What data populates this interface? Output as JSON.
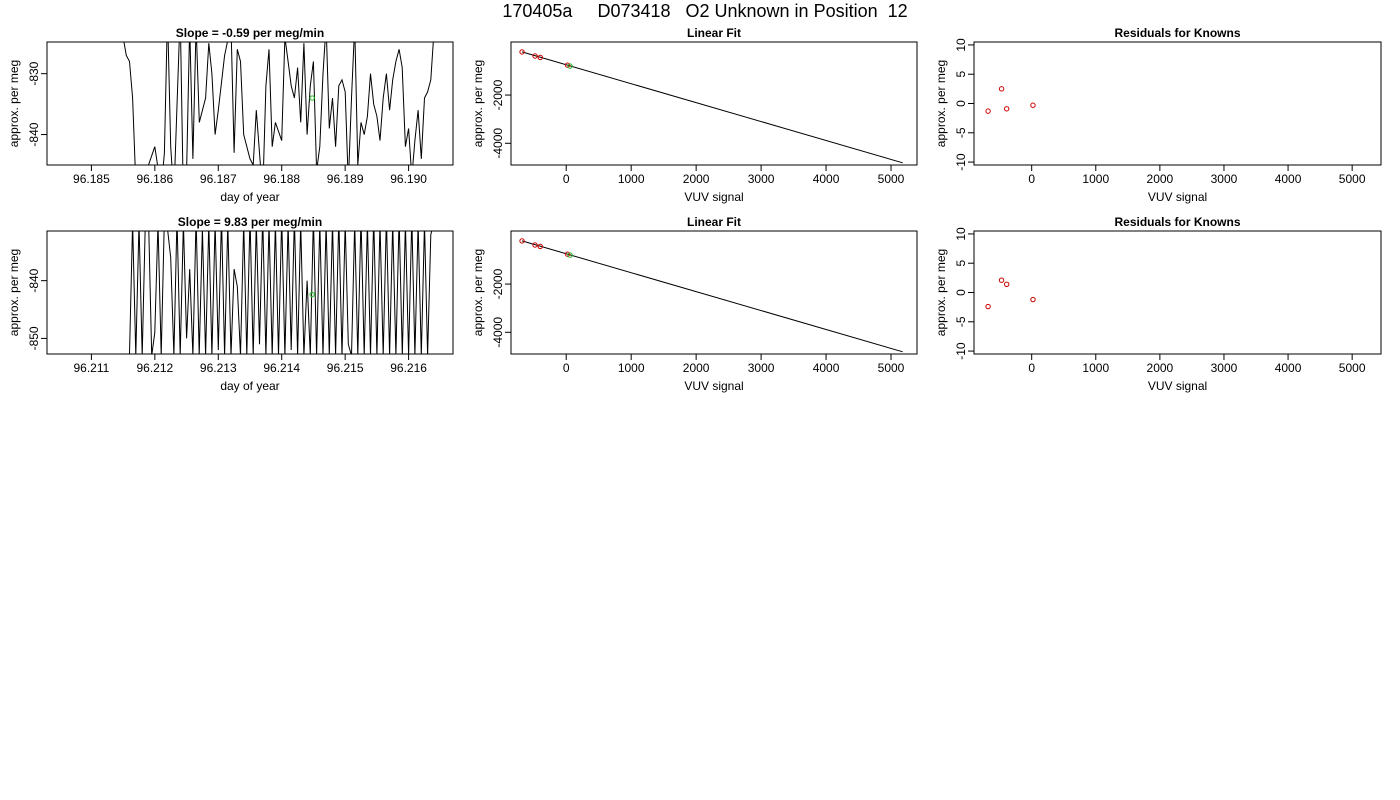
{
  "page_title": "170405a     D073418   O2 Unknown in Position  12",
  "colors": {
    "line": "#000000",
    "known_point": "#cc0000",
    "unknown_point": "#22bb22",
    "frame": "#000000"
  },
  "chart_data": [
    {
      "type": "line",
      "title": "Slope =  -0.59  per meg/min",
      "xlabel": "day of year",
      "ylabel": "approx. per meg",
      "xlim": [
        96.1843,
        96.1907
      ],
      "ylim": [
        -845.0,
        -824.8
      ],
      "xticks": [
        96.185,
        96.186,
        96.187,
        96.188,
        96.189,
        96.19
      ],
      "xtick_labels": [
        "96.185",
        "96.186",
        "96.187",
        "96.188",
        "96.189",
        "96.190"
      ],
      "yticks": [
        -840,
        -830
      ],
      "ytick_labels": [
        "-840",
        "-830"
      ],
      "series": [
        {
          "x": [
            96.1855,
            96.18555,
            96.1856,
            96.18565,
            96.1857,
            96.1859,
            96.186,
            96.1861,
            96.18615,
            96.1862,
            96.18625,
            96.1863,
            96.1864,
            96.18645,
            96.1865,
            96.18655,
            96.1866,
            96.18665,
            96.1867,
            96.1868,
            96.18685,
            96.1869,
            96.18695,
            96.187,
            96.1871,
            96.1872,
            96.18725,
            96.1873,
            96.18735,
            96.1874,
            96.1875,
            96.18755,
            96.1876,
            96.1877,
            96.18775,
            96.1878,
            96.18785,
            96.1879,
            96.188,
            96.18805,
            96.1881,
            96.18815,
            96.1882,
            96.18825,
            96.1883,
            96.18835,
            96.1884,
            96.18845,
            96.1885,
            96.18855,
            96.1886,
            96.18865,
            96.1887,
            96.18875,
            96.1888,
            96.18885,
            96.1889,
            96.18895,
            96.189,
            96.18905,
            96.1891,
            96.18915,
            96.1892,
            96.18925,
            96.1893,
            96.18935,
            96.1894,
            96.18945,
            96.1895,
            96.18955,
            96.1896,
            96.18965,
            96.1897,
            96.18975,
            96.1898,
            96.18985,
            96.1899,
            96.18995,
            96.19,
            96.19005,
            96.1901,
            96.19015,
            96.1902,
            96.19025,
            96.1903,
            96.19035,
            96.1904
          ],
          "y": [
            -824,
            -827,
            -828,
            -834,
            -848,
            -845,
            -842,
            -849,
            -843,
            -820,
            -842,
            -850,
            -820,
            -851,
            -846,
            -822,
            -844,
            -822,
            -838,
            -834,
            -825,
            -830,
            -840,
            -836,
            -827,
            -822,
            -843,
            -826,
            -828,
            -840,
            -844,
            -845,
            -836,
            -850,
            -832,
            -826,
            -842,
            -838,
            -841,
            -824,
            -828,
            -832,
            -834,
            -829,
            -838,
            -825,
            -840,
            -832,
            -828,
            -846,
            -842,
            -830,
            -822,
            -839,
            -834,
            -842,
            -832,
            -831,
            -833,
            -848,
            -834,
            -822,
            -845,
            -838,
            -840,
            -837,
            -830,
            -835,
            -837,
            -841,
            -834,
            -830,
            -836,
            -831,
            -828,
            -826,
            -829,
            -842,
            -839,
            -847,
            -841,
            -836,
            -844,
            -834,
            -833,
            -831,
            -823
          ]
        }
      ],
      "points": [
        {
          "x": 96.18848,
          "y": -834.0,
          "role": "unknown"
        }
      ]
    },
    {
      "type": "scatter",
      "title": "Linear Fit",
      "xlabel": "VUV signal",
      "ylabel": "approx. per meg",
      "xlim": [
        -850,
        5400
      ],
      "ylim": [
        -4900,
        200
      ],
      "xticks": [
        0,
        1000,
        2000,
        3000,
        4000,
        5000
      ],
      "xtick_labels": [
        "0",
        "1000",
        "2000",
        "3000",
        "4000",
        "5000"
      ],
      "yticks": [
        -4000,
        -2000
      ],
      "ytick_labels": [
        "-4000",
        "-2000"
      ],
      "fit_line": {
        "x": [
          -680,
          5180
        ],
        "y": [
          -210,
          -4810
        ]
      },
      "points": [
        {
          "x": -680,
          "y": -210,
          "role": "known"
        },
        {
          "x": -480,
          "y": -380,
          "role": "known"
        },
        {
          "x": -400,
          "y": -440,
          "role": "known"
        },
        {
          "x": 20,
          "y": -760,
          "role": "known"
        },
        {
          "x": 60,
          "y": -800,
          "role": "unknown"
        }
      ]
    },
    {
      "type": "scatter",
      "title": "Residuals for Knowns",
      "xlabel": "VUV signal",
      "ylabel": "approx. per meg",
      "xlim": [
        -900,
        5450
      ],
      "ylim": [
        -10.5,
        10.5
      ],
      "xticks": [
        0,
        1000,
        2000,
        3000,
        4000,
        5000
      ],
      "xtick_labels": [
        "0",
        "1000",
        "2000",
        "3000",
        "4000",
        "5000"
      ],
      "yticks": [
        -10,
        -5,
        0,
        5,
        10
      ],
      "ytick_labels": [
        "-10",
        "-5",
        "0",
        "5",
        "10"
      ],
      "points": [
        {
          "x": -680,
          "y": -1.3,
          "role": "known"
        },
        {
          "x": -470,
          "y": 2.5,
          "role": "known"
        },
        {
          "x": -390,
          "y": -0.9,
          "role": "known"
        },
        {
          "x": 20,
          "y": -0.3,
          "role": "known"
        }
      ]
    },
    {
      "type": "line",
      "title": "Slope =  9.83  per meg/min",
      "xlabel": "day of year",
      "ylabel": "approx. per meg",
      "xlim": [
        96.2103,
        96.2167
      ],
      "ylim": [
        -852.7,
        -831.4
      ],
      "xticks": [
        96.211,
        96.212,
        96.213,
        96.214,
        96.215,
        96.216
      ],
      "xtick_labels": [
        "96.211",
        "96.212",
        "96.213",
        "96.214",
        "96.215",
        "96.216"
      ],
      "yticks": [
        -850,
        -840
      ],
      "ytick_labels": [
        "-850",
        "-840"
      ],
      "series": [
        {
          "x": [
            96.2103,
            96.2116,
            96.21165,
            96.2117,
            96.21175,
            96.2118,
            96.21185,
            96.2119,
            96.21195,
            96.212,
            96.21205,
            96.2121,
            96.21215,
            96.2122,
            96.21225,
            96.2123,
            96.21235,
            96.2124,
            96.21245,
            96.2125,
            96.21255,
            96.2126,
            96.21265,
            96.2127,
            96.21275,
            96.2128,
            96.21285,
            96.2129,
            96.21295,
            96.213,
            96.21305,
            96.2131,
            96.21315,
            96.2132,
            96.21325,
            96.2133,
            96.21335,
            96.2134,
            96.21345,
            96.2135,
            96.21355,
            96.2136,
            96.21365,
            96.2137,
            96.21375,
            96.2138,
            96.21385,
            96.2139,
            96.21395,
            96.214,
            96.21405,
            96.2141,
            96.21415,
            96.2142,
            96.21425,
            96.2143,
            96.21435,
            96.2144,
            96.21445,
            96.2145,
            96.21455,
            96.2146,
            96.21465,
            96.2147,
            96.21475,
            96.2148,
            96.21485,
            96.2149,
            96.21495,
            96.215,
            96.21505,
            96.2151,
            96.21515,
            96.2152,
            96.21525,
            96.2153,
            96.21535,
            96.2154,
            96.21545,
            96.2155,
            96.21555,
            96.2156,
            96.21565,
            96.2157,
            96.21575,
            96.2158,
            96.21585,
            96.2159,
            96.21595,
            96.216,
            96.21605,
            96.2161,
            96.21615,
            96.2162,
            96.21625,
            96.2163,
            96.21635,
            96.2164
          ],
          "y": [
            -852.7,
            -852.7,
            -830,
            -853,
            -830,
            -853,
            -830,
            -829,
            -853,
            -849,
            -830,
            -853,
            -829,
            -831,
            -836,
            -853,
            -829,
            -853,
            -830,
            -850,
            -838,
            -853,
            -829,
            -853,
            -831,
            -853,
            -830,
            -853,
            -830,
            -852,
            -829,
            -853,
            -830,
            -853,
            -838,
            -841,
            -853,
            -830,
            -853,
            -829,
            -853,
            -830,
            -851,
            -829,
            -853,
            -830,
            -853,
            -830,
            -853,
            -829,
            -853,
            -830,
            -852,
            -829,
            -853,
            -830,
            -853,
            -840,
            -853,
            -829,
            -853,
            -830,
            -853,
            -830,
            -853,
            -830,
            -853,
            -829,
            -853,
            -830,
            -851,
            -853,
            -830,
            -853,
            -829,
            -853,
            -830,
            -853,
            -829,
            -853,
            -830,
            -853,
            -829,
            -853,
            -830,
            -853,
            -829,
            -853,
            -830,
            -853,
            -829,
            -853,
            -830,
            -853,
            -830,
            -853,
            -832,
            -830
          ]
        }
      ],
      "points": [
        {
          "x": 96.21448,
          "y": -842.4,
          "role": "unknown"
        }
      ]
    },
    {
      "type": "scatter",
      "title": "Linear Fit",
      "xlabel": "VUV signal",
      "ylabel": "approx. per meg",
      "xlim": [
        -850,
        5400
      ],
      "ylim": [
        -4900,
        200
      ],
      "xticks": [
        0,
        1000,
        2000,
        3000,
        4000,
        5000
      ],
      "xtick_labels": [
        "0",
        "1000",
        "2000",
        "3000",
        "4000",
        "5000"
      ],
      "yticks": [
        -4000,
        -2000
      ],
      "ytick_labels": [
        "-4000",
        "-2000"
      ],
      "fit_line": {
        "x": [
          -680,
          5180
        ],
        "y": [
          -210,
          -4810
        ]
      },
      "points": [
        {
          "x": -680,
          "y": -210,
          "role": "known"
        },
        {
          "x": -480,
          "y": -380,
          "role": "known"
        },
        {
          "x": -400,
          "y": -440,
          "role": "known"
        },
        {
          "x": 20,
          "y": -760,
          "role": "known"
        },
        {
          "x": 60,
          "y": -800,
          "role": "unknown"
        }
      ]
    },
    {
      "type": "scatter",
      "title": "Residuals for Knowns",
      "xlabel": "VUV signal",
      "ylabel": "approx. per meg",
      "xlim": [
        -900,
        5450
      ],
      "ylim": [
        -10.5,
        10.5
      ],
      "xticks": [
        0,
        1000,
        2000,
        3000,
        4000,
        5000
      ],
      "xtick_labels": [
        "0",
        "1000",
        "2000",
        "3000",
        "4000",
        "5000"
      ],
      "yticks": [
        -10,
        -5,
        0,
        5,
        10
      ],
      "ytick_labels": [
        "-10",
        "-5",
        "0",
        "5",
        "10"
      ],
      "points": [
        {
          "x": -680,
          "y": -2.4,
          "role": "known"
        },
        {
          "x": -470,
          "y": 2.1,
          "role": "known"
        },
        {
          "x": -390,
          "y": 1.4,
          "role": "known"
        },
        {
          "x": 20,
          "y": -1.2,
          "role": "known"
        }
      ]
    }
  ]
}
